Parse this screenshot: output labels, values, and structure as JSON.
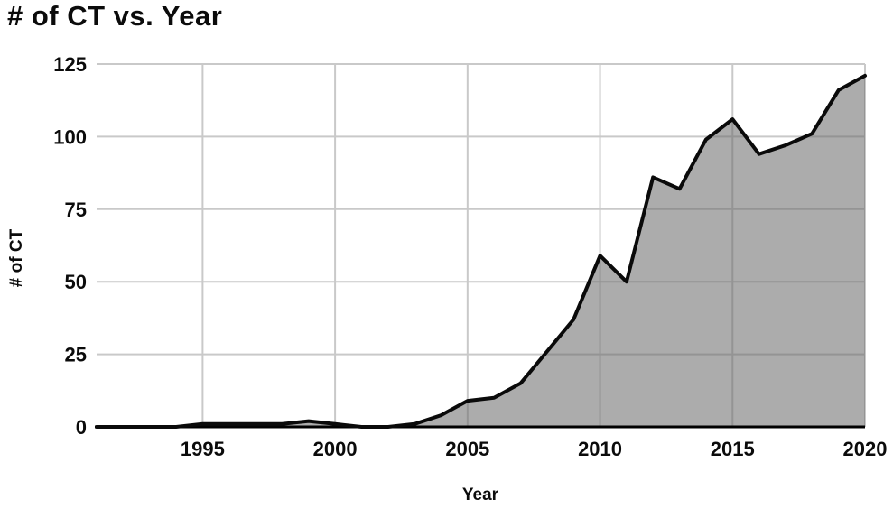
{
  "title": "# of CT vs. Year",
  "chart_data": {
    "type": "area",
    "title": "# of CT vs. Year",
    "xlabel": "Year",
    "ylabel": "# of CT",
    "x": [
      1991,
      1992,
      1993,
      1994,
      1995,
      1996,
      1997,
      1998,
      1999,
      2000,
      2001,
      2002,
      2003,
      2004,
      2005,
      2006,
      2007,
      2008,
      2009,
      2010,
      2011,
      2012,
      2013,
      2014,
      2015,
      2016,
      2017,
      2018,
      2019,
      2020
    ],
    "values": [
      0,
      0,
      0,
      0,
      1,
      1,
      1,
      1,
      2,
      1,
      0,
      0,
      1,
      4,
      9,
      10,
      15,
      26,
      37,
      59,
      50,
      86,
      82,
      99,
      106,
      94,
      97,
      101,
      116,
      121
    ],
    "xlim": [
      1991,
      2020
    ],
    "ylim": [
      0,
      125
    ],
    "x_ticks": [
      1995,
      2000,
      2005,
      2010,
      2015,
      2020
    ],
    "y_ticks": [
      0,
      25,
      50,
      75,
      100,
      125
    ],
    "grid": true,
    "legend": "none",
    "colors": {
      "line": "#0a0a0a",
      "fill": "#686868",
      "fill_opacity": 0.55,
      "gridline": "#c9c9c9",
      "axis": "#000000",
      "text": "#0b0b0b",
      "background": "#ffffff"
    }
  }
}
